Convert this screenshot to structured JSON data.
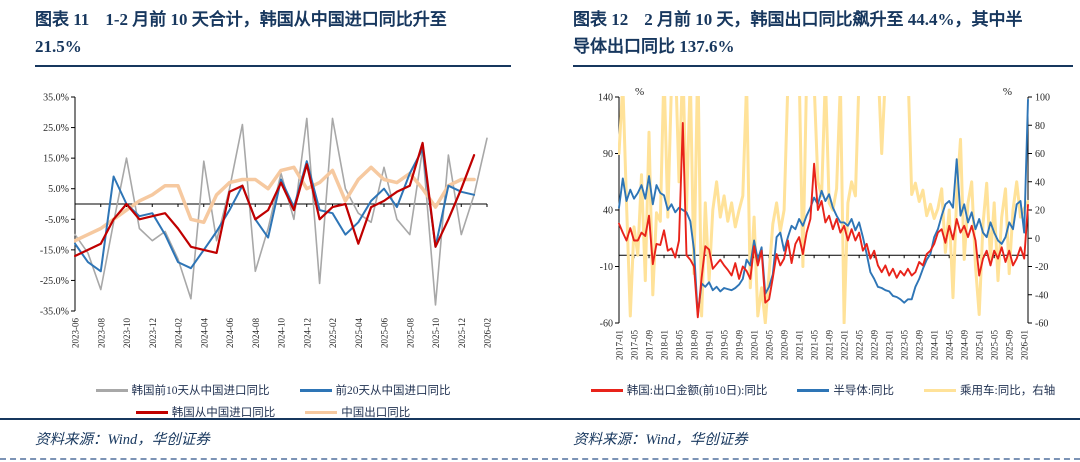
{
  "figures": [
    {
      "label": "图表 11",
      "title": "1-2 月前 10 天合计，韩国从中国进口同比升至 21.5%",
      "source": "资料来源：Wind，华创证券"
    },
    {
      "label": "图表 12",
      "title": "2 月前 10 天，韩国出口同比飙升至 44.4%，其中半导体出口同比 137.6%",
      "source": "资料来源：Wind，华创证券"
    }
  ],
  "chart_data": [
    {
      "id": "korea-imports-from-china",
      "type": "line",
      "categories": [
        "2023-06",
        "2023-07",
        "2023-08",
        "2023-09",
        "2023-10",
        "2023-11",
        "2023-12",
        "2024-01",
        "2024-02",
        "2024-03",
        "2024-04",
        "2024-05",
        "2024-06",
        "2024-07",
        "2024-08",
        "2024-09",
        "2024-10",
        "2024-11",
        "2024-12",
        "2025-01",
        "2025-02",
        "2025-03",
        "2025-04",
        "2025-05",
        "2025-06",
        "2025-07",
        "2025-08",
        "2025-09",
        "2025-10",
        "2025-11",
        "2025-12",
        "2026-01",
        "2026-02"
      ],
      "xtick_every": 2,
      "ylim_left": [
        -35,
        35
      ],
      "yticks_left": [
        [
          35,
          "35.0%"
        ],
        [
          25,
          "25.0%"
        ],
        [
          15,
          "15.0%"
        ],
        [
          5,
          "5.0%"
        ],
        [
          -5,
          "-5.0%"
        ],
        [
          -15,
          "-15.0%"
        ],
        [
          -25,
          "-25.0%"
        ],
        [
          -35,
          "-35.0%"
        ]
      ],
      "grid": false,
      "legend_position": "bottom",
      "series": [
        {
          "name": "韩国前10天从中国进口同比",
          "color": "#A8A8A8",
          "axis": "left",
          "stroke_width": 1.6,
          "legend_pos": 0,
          "values": [
            -10,
            -16,
            -28,
            -6,
            15,
            -8,
            -12,
            -9,
            -18,
            -31,
            14,
            -12,
            5,
            26,
            -22,
            -8,
            10,
            -5,
            28,
            -26,
            28,
            5,
            -3,
            -6,
            12,
            -5,
            -10,
            18,
            -33,
            16,
            -10,
            3,
            21.5
          ]
        },
        {
          "name": "中国出口同比",
          "color": "#F6C9A0",
          "axis": "left",
          "stroke_width": 3.5,
          "legend_pos": 3,
          "values": [
            -12,
            -10,
            -8,
            -5,
            -2,
            1,
            3,
            6,
            6,
            -5,
            -6,
            3,
            7,
            8,
            8,
            5,
            11,
            12,
            5,
            7,
            11,
            1,
            8,
            12,
            8,
            7,
            10,
            5,
            -1,
            6,
            8,
            8,
            null
          ]
        },
        {
          "name": "前20天从中国进口同比",
          "color": "#2E75B6",
          "axis": "left",
          "stroke_width": 2,
          "legend_pos": 1,
          "values": [
            -13,
            -19,
            -22,
            9,
            0,
            -4,
            -3,
            -10,
            -19,
            -21,
            -15,
            -9,
            -2,
            6,
            -5,
            -11,
            8,
            -1,
            14,
            -2,
            -3,
            -10,
            -6,
            1,
            5,
            -1,
            10,
            18,
            -14,
            6,
            4,
            3,
            null
          ]
        },
        {
          "name": "韩国从中国进口同比",
          "color": "#C00000",
          "axis": "left",
          "stroke_width": 2.2,
          "legend_pos": 2,
          "values": [
            -17,
            -15,
            -13,
            -5,
            0,
            -5,
            -4,
            -3,
            -8,
            -14,
            -15,
            -16,
            4,
            6,
            -5,
            -2,
            7,
            -2,
            13,
            -5,
            -1,
            0,
            -13,
            -1,
            1,
            4,
            6,
            20,
            -14,
            -5,
            5,
            16,
            null
          ]
        }
      ]
    },
    {
      "id": "korea-exports",
      "type": "line",
      "categories": [
        "2017-01",
        "2017-02",
        "2017-03",
        "2017-04",
        "2017-05",
        "2017-06",
        "2017-07",
        "2017-08",
        "2017-09",
        "2017-10",
        "2017-11",
        "2017-12",
        "2018-01",
        "2018-02",
        "2018-03",
        "2018-04",
        "2018-05",
        "2018-06",
        "2018-07",
        "2018-08",
        "2018-09",
        "2018-10",
        "2018-11",
        "2018-12",
        "2019-01",
        "2019-02",
        "2019-03",
        "2019-04",
        "2019-05",
        "2019-06",
        "2019-07",
        "2019-08",
        "2019-09",
        "2019-10",
        "2019-11",
        "2019-12",
        "2020-01",
        "2020-02",
        "2020-03",
        "2020-04",
        "2020-05",
        "2020-06",
        "2020-07",
        "2020-08",
        "2020-09",
        "2020-10",
        "2020-11",
        "2020-12",
        "2021-01",
        "2021-02",
        "2021-03",
        "2021-04",
        "2021-05",
        "2021-06",
        "2021-07",
        "2021-08",
        "2021-09",
        "2021-10",
        "2021-11",
        "2021-12",
        "2022-01",
        "2022-02",
        "2022-03",
        "2022-04",
        "2022-05",
        "2022-06",
        "2022-07",
        "2022-08",
        "2022-09",
        "2022-10",
        "2022-11",
        "2022-12",
        "2023-01",
        "2023-02",
        "2023-03",
        "2023-04",
        "2023-05",
        "2023-06",
        "2023-07",
        "2023-08",
        "2023-09",
        "2023-10",
        "2023-11",
        "2023-12",
        "2024-01",
        "2024-02",
        "2024-03",
        "2024-04",
        "2024-05",
        "2024-06",
        "2024-07",
        "2024-08",
        "2024-09",
        "2024-10",
        "2024-11",
        "2024-12",
        "2025-01",
        "2025-02",
        "2025-03",
        "2025-04",
        "2025-05",
        "2025-06",
        "2025-07",
        "2025-08",
        "2025-09",
        "2025-10",
        "2025-11",
        "2025-12",
        "2026-01",
        "2026-02"
      ],
      "xtick_every": 4,
      "ylim_left": [
        -60,
        140
      ],
      "ylim_right": [
        -60,
        100
      ],
      "axis_unit_left": "%",
      "axis_unit_right": "%",
      "yticks_left": [
        [
          140,
          "140"
        ],
        [
          90,
          "90"
        ],
        [
          40,
          "40"
        ],
        [
          -10,
          "-10"
        ],
        [
          -60,
          "-60"
        ]
      ],
      "yticks_right": [
        [
          100,
          "100"
        ],
        [
          80,
          "80"
        ],
        [
          60,
          "60"
        ],
        [
          40,
          "40"
        ],
        [
          20,
          "20"
        ],
        [
          0,
          "0"
        ],
        [
          -20,
          "-20"
        ],
        [
          -40,
          "-40"
        ],
        [
          -60,
          "-60"
        ]
      ],
      "grid": false,
      "legend_position": "bottom",
      "series": [
        {
          "name": "乘用车:同比，右轴",
          "color": "#FFE299",
          "axis": "right",
          "stroke_width": 3,
          "legend_pos": 2,
          "values": [
            60,
            110,
            25,
            -55,
            8,
            -12,
            45,
            -30,
            75,
            -40,
            18,
            12,
            120,
            15,
            110,
            130,
            40,
            125,
            20,
            115,
            -25,
            130,
            -55,
            25,
            -30,
            20,
            40,
            15,
            30,
            12,
            25,
            8,
            20,
            30,
            110,
            -35,
            15,
            -55,
            -35,
            -60,
            -25,
            10,
            25,
            5,
            20,
            110,
            125,
            115,
            120,
            -20,
            115,
            130,
            110,
            40,
            30,
            115,
            25,
            20,
            35,
            110,
            -60,
            25,
            40,
            30,
            115,
            125,
            130,
            120,
            115,
            125,
            60,
            115,
            120,
            115,
            125,
            110,
            115,
            120,
            31,
            39,
            26,
            34,
            16,
            24,
            14,
            21,
            35,
            -10,
            20,
            -42,
            30,
            70,
            -15,
            25,
            40,
            -20,
            -54,
            10,
            39,
            -15,
            25,
            -30,
            15,
            35,
            -25,
            20,
            40,
            15,
            21,
            26
          ]
        },
        {
          "name": "半导体:同比",
          "color": "#2E75B6",
          "axis": "left",
          "stroke_width": 1.9,
          "legend_pos": 1,
          "values": [
            42,
            68,
            48,
            58,
            50,
            55,
            62,
            50,
            70,
            45,
            62,
            55,
            53,
            40,
            45,
            38,
            42,
            40,
            38,
            30,
            5,
            -53,
            -25,
            -28,
            -24,
            -31,
            -28,
            -32,
            -29,
            -30,
            -31,
            -29,
            -26,
            -21,
            -4,
            -9,
            13,
            -4,
            7,
            -34,
            -28,
            -17,
            16,
            20,
            4,
            16,
            26,
            23,
            32,
            26,
            35,
            42,
            51,
            45,
            57,
            48,
            54,
            42,
            35,
            29,
            29,
            26,
            32,
            22,
            29,
            16,
            1,
            -15,
            -21,
            -28,
            -29,
            -31,
            -32,
            -36,
            -37,
            -39,
            -42,
            -39,
            -39,
            -28,
            -21,
            -12,
            -4,
            1,
            16,
            23,
            35,
            45,
            48,
            42,
            85,
            35,
            45,
            29,
            38,
            23,
            32,
            20,
            16,
            29,
            20,
            13,
            10,
            16,
            29,
            23,
            45,
            48,
            20,
            137.6
          ]
        },
        {
          "name": "韩国:出口金额(前10日):同比",
          "color": "#E8231A",
          "axis": "left",
          "stroke_width": 1.9,
          "legend_pos": 0,
          "values": [
            28,
            20,
            13,
            24,
            13,
            13,
            20,
            17,
            35,
            -8,
            10,
            9,
            22,
            4,
            6,
            -2,
            13,
            117,
            0,
            -4,
            -10,
            -55,
            -20,
            8,
            5,
            -12,
            -8,
            -4,
            -9,
            -13,
            -18,
            -7,
            -21,
            -10,
            -14,
            -21,
            8,
            -9,
            4,
            -42,
            -39,
            -20,
            1,
            -9,
            -3,
            13,
            -7,
            10,
            16,
            1,
            20,
            32,
            81,
            40,
            48,
            29,
            35,
            23,
            32,
            20,
            26,
            13,
            23,
            13,
            20,
            4,
            10,
            -3,
            4,
            -9,
            -15,
            -9,
            -18,
            -12,
            -20,
            -14,
            -18,
            -12,
            -18,
            -15,
            -6,
            -9,
            1,
            4,
            10,
            20,
            23,
            11,
            26,
            14,
            32,
            20,
            26,
            16,
            26,
            13,
            -18,
            -3,
            4,
            -9,
            4,
            -3,
            7,
            -6,
            4,
            -9,
            -3,
            7,
            -3,
            44.4
          ]
        }
      ]
    }
  ]
}
